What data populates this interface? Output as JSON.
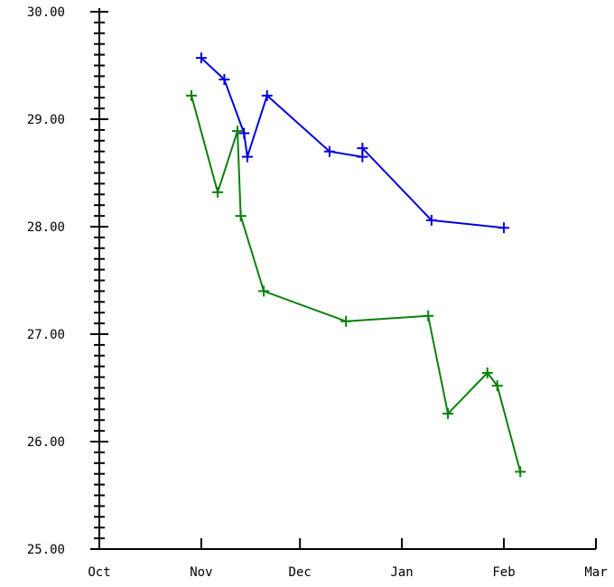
{
  "chart_data": {
    "type": "line",
    "title": "",
    "xlabel": "",
    "ylabel": "",
    "x_axis": {
      "type": "date",
      "range": [
        "2012-10-01",
        "2013-03-01"
      ],
      "ticks": [
        {
          "date": "2012-10-01",
          "label": "Oct"
        },
        {
          "date": "2012-11-01",
          "label": "Nov"
        },
        {
          "date": "2012-12-01",
          "label": "Dec"
        },
        {
          "date": "2013-01-01",
          "label": "Jan"
        },
        {
          "date": "2013-02-01",
          "label": "Feb"
        },
        {
          "date": "2013-03-01",
          "label": "Mar"
        }
      ]
    },
    "y_axis": {
      "range": [
        25.0,
        30.0
      ],
      "major_ticks": [
        "25.00",
        "26.00",
        "27.00",
        "28.00",
        "29.00",
        "30.00"
      ],
      "minor_step": 0.1
    },
    "grid": false,
    "marker": "plus",
    "series": [
      {
        "color": "#0000dd",
        "points": [
          {
            "x": "2012-11-01",
            "y": 29.57
          },
          {
            "x": "2012-11-08",
            "y": 29.37
          },
          {
            "x": "2012-11-14",
            "y": 28.87
          },
          {
            "x": "2012-11-15",
            "y": 28.65
          },
          {
            "x": "2012-11-21",
            "y": 29.22
          },
          {
            "x": "2012-12-10",
            "y": 28.7
          },
          {
            "x": "2012-12-20",
            "y": 28.65
          },
          {
            "x": "2012-12-20",
            "y": 28.73
          },
          {
            "x": "2013-01-10",
            "y": 28.06
          },
          {
            "x": "2013-02-01",
            "y": 27.99
          }
        ]
      },
      {
        "color": "#0a800a",
        "points": [
          {
            "x": "2012-10-29",
            "y": 29.22
          },
          {
            "x": "2012-11-06",
            "y": 28.32
          },
          {
            "x": "2012-11-12",
            "y": 28.89
          },
          {
            "x": "2012-11-13",
            "y": 28.1
          },
          {
            "x": "2012-11-20",
            "y": 27.4
          },
          {
            "x": "2012-12-15",
            "y": 27.12
          },
          {
            "x": "2013-01-09",
            "y": 27.17
          },
          {
            "x": "2013-01-15",
            "y": 26.26
          },
          {
            "x": "2013-01-27",
            "y": 26.64
          },
          {
            "x": "2013-01-30",
            "y": 26.52
          },
          {
            "x": "2013-02-06",
            "y": 25.72
          }
        ]
      }
    ]
  }
}
